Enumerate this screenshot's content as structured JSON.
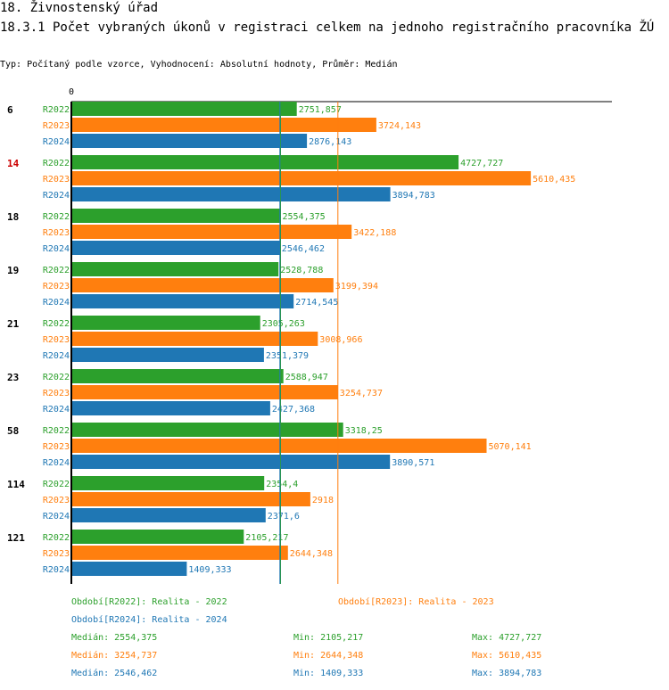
{
  "header": {
    "title": "18. Živnostenský úřad",
    "subtitle": "18.3.1 Počet vybraných úkonů v registraci celkem na jednoho registračního pracovníka ŽÚ",
    "type_line": "Typ: Počítaný podle vzorce, Vyhodnocení: Absolutní hodnoty, Průměr: Medián"
  },
  "colors": {
    "R2022": "#2ca02c",
    "R2023": "#ff7f0e",
    "R2024": "#1f77b4",
    "highlight": "#cc0000"
  },
  "chart_data": {
    "type": "bar",
    "orientation": "horizontal",
    "axis_zero_label": "0",
    "xlim": [
      0,
      6600
    ],
    "categories": [
      "6",
      "14",
      "18",
      "19",
      "21",
      "23",
      "58",
      "114",
      "121"
    ],
    "highlighted_category": "14",
    "series": [
      {
        "name": "R2022",
        "values": [
          2751.857,
          4727.727,
          2554.375,
          2528.788,
          2305.263,
          2588.947,
          3318.25,
          2354.4,
          2105.217
        ],
        "labels": [
          "2751,857",
          "4727,727",
          "2554,375",
          "2528,788",
          "2305,263",
          "2588,947",
          "3318,25",
          "2354,4",
          "2105,217"
        ]
      },
      {
        "name": "R2023",
        "values": [
          3724.143,
          5610.435,
          3422.188,
          3199.394,
          3008.966,
          3254.737,
          5070.141,
          2918,
          2644.348
        ],
        "labels": [
          "3724,143",
          "5610,435",
          "3422,188",
          "3199,394",
          "3008,966",
          "3254,737",
          "5070,141",
          "2918",
          "2644,348"
        ]
      },
      {
        "name": "R2024",
        "values": [
          2876.143,
          3894.783,
          2546.462,
          2714.545,
          2351.379,
          2427.368,
          3890.571,
          2371.6,
          1409.333
        ],
        "labels": [
          "2876,143",
          "3894,783",
          "2546,462",
          "2714,545",
          "2351,379",
          "2427,368",
          "3890,571",
          "2371,6",
          "1409,333"
        ]
      }
    ],
    "median_lines": [
      {
        "series": "R2022",
        "value": 2554.375
      },
      {
        "series": "R2023",
        "value": 3254.737
      },
      {
        "series": "R2024",
        "value": 2546.462
      }
    ]
  },
  "legend": {
    "r2022": "Období[R2022]: Realita - 2022",
    "r2023": "Období[R2023]: Realita - 2023",
    "r2024": "Období[R2024]: Realita - 2024",
    "stats": [
      {
        "median": "Medián: 2554,375",
        "min": "Min: 2105,217",
        "max": "Max: 4727,727"
      },
      {
        "median": "Medián: 3254,737",
        "min": "Min: 2644,348",
        "max": "Max: 5610,435"
      },
      {
        "median": "Medián: 2546,462",
        "min": "Min: 1409,333",
        "max": "Max: 3894,783"
      }
    ]
  }
}
